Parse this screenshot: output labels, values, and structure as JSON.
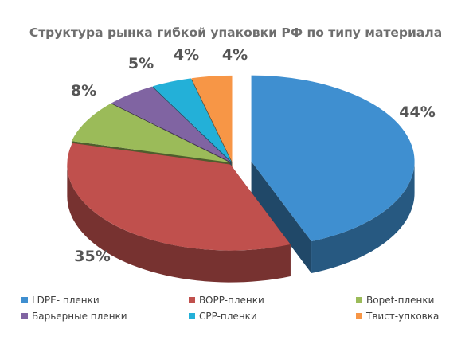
{
  "chart_data": {
    "type": "pie",
    "title": "Структура рынка гибкой упаковки РФ по типу материала",
    "categories": [
      "LDPE- пленки",
      "BOPP-пленки",
      "Bopet-пленки",
      "Барьерные пленки",
      "CPP-пленки",
      "Твист-упковка"
    ],
    "values": [
      44,
      35,
      8,
      5,
      4,
      4
    ],
    "data_labels": [
      "44%",
      "35%",
      "8%",
      "5%",
      "4%",
      "4%"
    ],
    "colors": [
      "#3f8fd0",
      "#c0504d",
      "#9bbb59",
      "#8064a2",
      "#23b0d8",
      "#f79646"
    ],
    "legend_position": "bottom",
    "style": "3d-exploded"
  }
}
